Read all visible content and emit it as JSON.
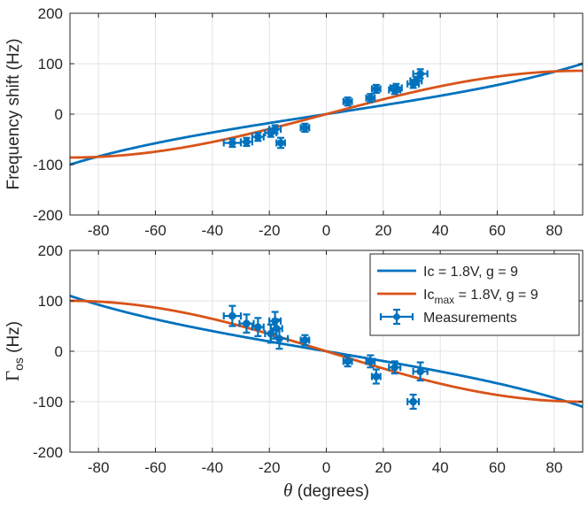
{
  "chart_data": [
    {
      "type": "scatter",
      "ylabel": "Frequency shift (Hz)",
      "xlabel": "",
      "xlim": [
        -90,
        90
      ],
      "ylim": [
        -200,
        200
      ],
      "xticks": [
        -80,
        -60,
        -40,
        -20,
        0,
        20,
        40,
        60,
        80
      ],
      "yticks": [
        -200,
        -100,
        0,
        100,
        200
      ],
      "grid": true,
      "legend": false,
      "series": [
        {
          "kind": "curve",
          "model": "tan",
          "amplitude": 100,
          "color": "#0072BD"
        },
        {
          "kind": "curve",
          "model": "sin",
          "amplitude": 86,
          "color": "#D95319"
        },
        {
          "kind": "errorbar",
          "color": "#0072BD",
          "points": [
            {
              "x": -33,
              "y": -57,
              "xerr": 3,
              "yerr": 8
            },
            {
              "x": -28,
              "y": -55,
              "xerr": 2,
              "yerr": 8
            },
            {
              "x": -24,
              "y": -45,
              "xerr": 2,
              "yerr": 8
            },
            {
              "x": -19.5,
              "y": -37,
              "xerr": 2,
              "yerr": 8
            },
            {
              "x": -18,
              "y": -30,
              "xerr": 2,
              "yerr": 8
            },
            {
              "x": -16,
              "y": -57,
              "xerr": 1.5,
              "yerr": 10
            },
            {
              "x": -7.5,
              "y": -27,
              "xerr": 1.5,
              "yerr": 8
            },
            {
              "x": 7.5,
              "y": 25,
              "xerr": 1.5,
              "yerr": 8
            },
            {
              "x": 15.5,
              "y": 32,
              "xerr": 1.5,
              "yerr": 8
            },
            {
              "x": 17.5,
              "y": 50,
              "xerr": 1.5,
              "yerr": 8
            },
            {
              "x": 24,
              "y": 48,
              "xerr": 2,
              "yerr": 8
            },
            {
              "x": 24.5,
              "y": 52,
              "xerr": 2,
              "yerr": 8
            },
            {
              "x": 30.5,
              "y": 60,
              "xerr": 2,
              "yerr": 8
            },
            {
              "x": 31.5,
              "y": 66,
              "xerr": 2,
              "yerr": 8
            },
            {
              "x": 33,
              "y": 80,
              "xerr": 2.5,
              "yerr": 9
            }
          ]
        }
      ]
    },
    {
      "type": "scatter",
      "ylabel": "Γ",
      "ylabel_sub": "os",
      "ylabel_unit": "(Hz)",
      "xlabel": "θ (degrees)",
      "xlim": [
        -90,
        90
      ],
      "ylim": [
        -200,
        200
      ],
      "xticks": [
        -80,
        -60,
        -40,
        -20,
        0,
        20,
        40,
        60,
        80
      ],
      "yticks": [
        -200,
        -100,
        0,
        100,
        200
      ],
      "grid": true,
      "legend": "top-right",
      "series": [
        {
          "kind": "curve",
          "name": "Ic = 1.8V, g = 9",
          "model": "negtan",
          "amplitude": 110,
          "color": "#0072BD"
        },
        {
          "kind": "curve",
          "name": "Ic",
          "name_sub": "max",
          "name_rest": " = 1.8V, g = 9",
          "model": "negsin",
          "amplitude": 100,
          "color": "#D95319"
        },
        {
          "kind": "errorbar",
          "name": "Measurements",
          "color": "#0072BD",
          "points": [
            {
              "x": -33,
              "y": 70,
              "xerr": 3,
              "yerr": 20
            },
            {
              "x": -28,
              "y": 55,
              "xerr": 2.5,
              "yerr": 18
            },
            {
              "x": -24,
              "y": 48,
              "xerr": 2,
              "yerr": 18
            },
            {
              "x": -19.5,
              "y": 35,
              "xerr": 2,
              "yerr": 18
            },
            {
              "x": -18,
              "y": 60,
              "xerr": 2,
              "yerr": 18
            },
            {
              "x": -17.5,
              "y": 45,
              "xerr": 2,
              "yerr": 18
            },
            {
              "x": -16.5,
              "y": 25,
              "xerr": 3,
              "yerr": 20
            },
            {
              "x": -7.5,
              "y": 22,
              "xerr": 1.5,
              "yerr": 10
            },
            {
              "x": 7.5,
              "y": -20,
              "xerr": 1.5,
              "yerr": 10
            },
            {
              "x": 15.5,
              "y": -20,
              "xerr": 1.5,
              "yerr": 12
            },
            {
              "x": 17.5,
              "y": -50,
              "xerr": 1.5,
              "yerr": 14
            },
            {
              "x": 24,
              "y": -32,
              "xerr": 2,
              "yerr": 12
            },
            {
              "x": 30.5,
              "y": -100,
              "xerr": 2,
              "yerr": 14
            },
            {
              "x": 33,
              "y": -40,
              "xerr": 2.5,
              "yerr": 18
            }
          ]
        }
      ]
    }
  ]
}
